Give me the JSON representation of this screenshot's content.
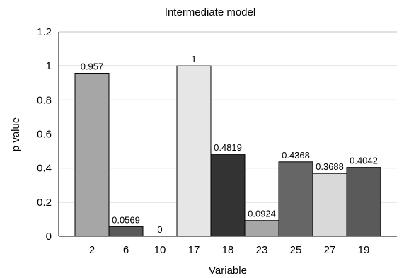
{
  "chart_data": {
    "type": "bar",
    "title": "Intermediate model",
    "xlabel": "Variable",
    "ylabel": "p value",
    "ylim": [
      0,
      1.2
    ],
    "yticks": [
      "0",
      "0.2",
      "0.4",
      "0.6",
      "0.8",
      "1",
      "1.2"
    ],
    "categories": [
      "2",
      "6",
      "10",
      "17",
      "18",
      "23",
      "25",
      "27",
      "19"
    ],
    "values": [
      0.957,
      0.0569,
      0,
      1,
      0.4819,
      0.0924,
      0.4368,
      0.3688,
      0.4042
    ],
    "data_labels": [
      "0.957",
      "0.0569",
      "0",
      "1",
      "0.4819",
      "0.0924",
      "0.4368",
      "0.3688",
      "0.4042"
    ],
    "colors": [
      "#a6a6a6",
      "#5a5a5a",
      "#ffffff",
      "#e6e6e6",
      "#333333",
      "#a6a6a6",
      "#666666",
      "#d9d9d9",
      "#5a5a5a"
    ],
    "grid": true,
    "legend": "none"
  }
}
